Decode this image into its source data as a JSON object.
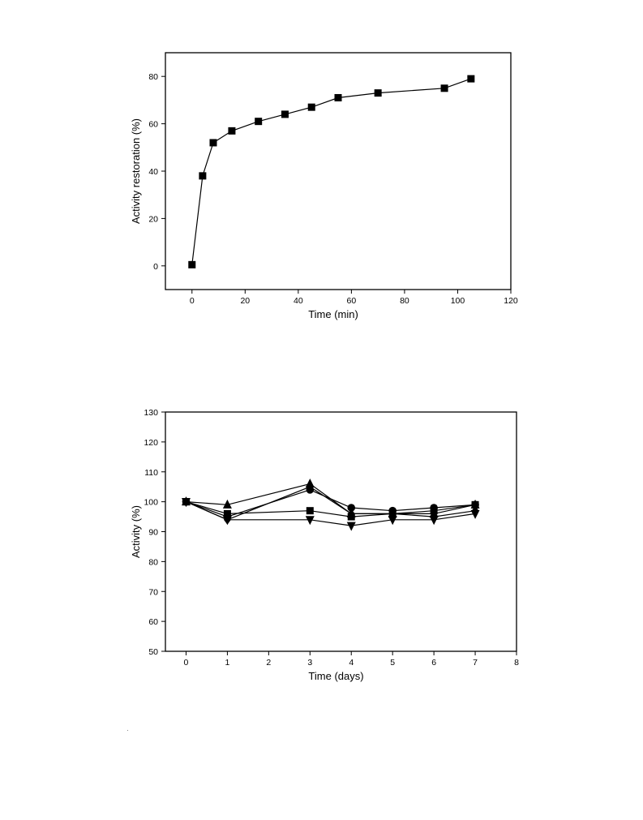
{
  "chart_data": [
    {
      "type": "line",
      "title": "",
      "xlabel": "Time (min)",
      "ylabel": "Activity restoration (%)",
      "xlim": [
        -10,
        120
      ],
      "ylim": [
        -10,
        90
      ],
      "xticks": [
        0,
        20,
        40,
        60,
        80,
        100,
        120
      ],
      "yticks": [
        0,
        20,
        40,
        60,
        80
      ],
      "xtick_labels": [
        "0",
        "20",
        "40",
        "60",
        "80",
        "100",
        "120"
      ],
      "ytick_labels": [
        "0",
        "20",
        "40",
        "60",
        "80"
      ],
      "grid": false,
      "series": [
        {
          "marker": "square",
          "x": [
            0,
            4,
            8,
            15,
            25,
            35,
            45,
            55,
            70,
            95,
            105
          ],
          "y": [
            0.5,
            38,
            52,
            57,
            61,
            64,
            67,
            71,
            73,
            75,
            79
          ]
        }
      ]
    },
    {
      "type": "line",
      "title": "",
      "xlabel": "Time (days)",
      "ylabel": "Activity (%)",
      "xlim": [
        -0.5,
        8
      ],
      "ylim": [
        50,
        130
      ],
      "xticks": [
        0,
        1,
        2,
        3,
        4,
        5,
        6,
        7,
        8
      ],
      "yticks": [
        50,
        60,
        70,
        80,
        90,
        100,
        110,
        120,
        130
      ],
      "xtick_labels": [
        "0",
        "1",
        "2",
        "3",
        "4",
        "5",
        "6",
        "7",
        "8"
      ],
      "ytick_labels": [
        "50",
        "60",
        "70",
        "80",
        "90",
        "100",
        "110",
        "120",
        "130"
      ],
      "grid": false,
      "series": [
        {
          "marker": "square",
          "x": [
            0,
            1,
            3,
            4,
            5,
            6,
            7
          ],
          "y": [
            100,
            96,
            97,
            95,
            96,
            97,
            99
          ]
        },
        {
          "marker": "circle",
          "x": [
            0,
            1,
            3,
            4,
            5,
            6,
            7
          ],
          "y": [
            100,
            95,
            104,
            98,
            97,
            98,
            99
          ]
        },
        {
          "marker": "triangle-up",
          "x": [
            0,
            1,
            3,
            4,
            5,
            6,
            7
          ],
          "y": [
            100,
            99,
            106,
            96,
            96,
            96,
            99
          ]
        },
        {
          "marker": "triangle-down",
          "x": [
            0,
            1,
            3,
            4,
            5,
            6,
            7
          ],
          "y": [
            100,
            94,
            94,
            92,
            94,
            94,
            96
          ]
        },
        {
          "marker": "diamond",
          "x": [
            0,
            1,
            3,
            4,
            5,
            6,
            7
          ],
          "y": [
            100,
            94,
            105,
            96,
            96,
            95,
            97
          ]
        }
      ]
    }
  ]
}
